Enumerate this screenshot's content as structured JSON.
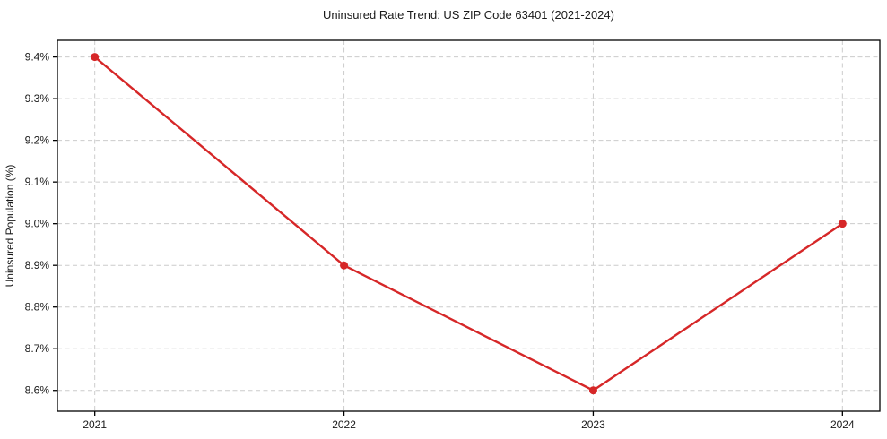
{
  "chart_data": {
    "type": "line",
    "title": "Uninsured Rate Trend: US ZIP Code 63401 (2021-2024)",
    "xlabel": "",
    "ylabel": "Uninsured Population (%)",
    "x": [
      2021,
      2022,
      2023,
      2024
    ],
    "x_tick_labels": [
      "2021",
      "2022",
      "2023",
      "2024"
    ],
    "values": [
      9.4,
      8.9,
      8.6,
      9.0
    ],
    "y_ticks": [
      8.6,
      8.7,
      8.8,
      8.9,
      9.0,
      9.1,
      9.2,
      9.3,
      9.4
    ],
    "y_tick_labels": [
      "8.6%",
      "8.7%",
      "8.8%",
      "8.9%",
      "9.0%",
      "9.1%",
      "9.2%",
      "9.3%",
      "9.4%"
    ],
    "xlim": [
      2020.85,
      2024.15
    ],
    "ylim": [
      8.55,
      9.44
    ],
    "grid": true,
    "legend": "none",
    "colors": {
      "line": "#d62728",
      "marker": "#d62728",
      "grid": "#cccccc",
      "spine": "#000000",
      "text": "#1a1a1a",
      "background": "#ffffff"
    }
  }
}
